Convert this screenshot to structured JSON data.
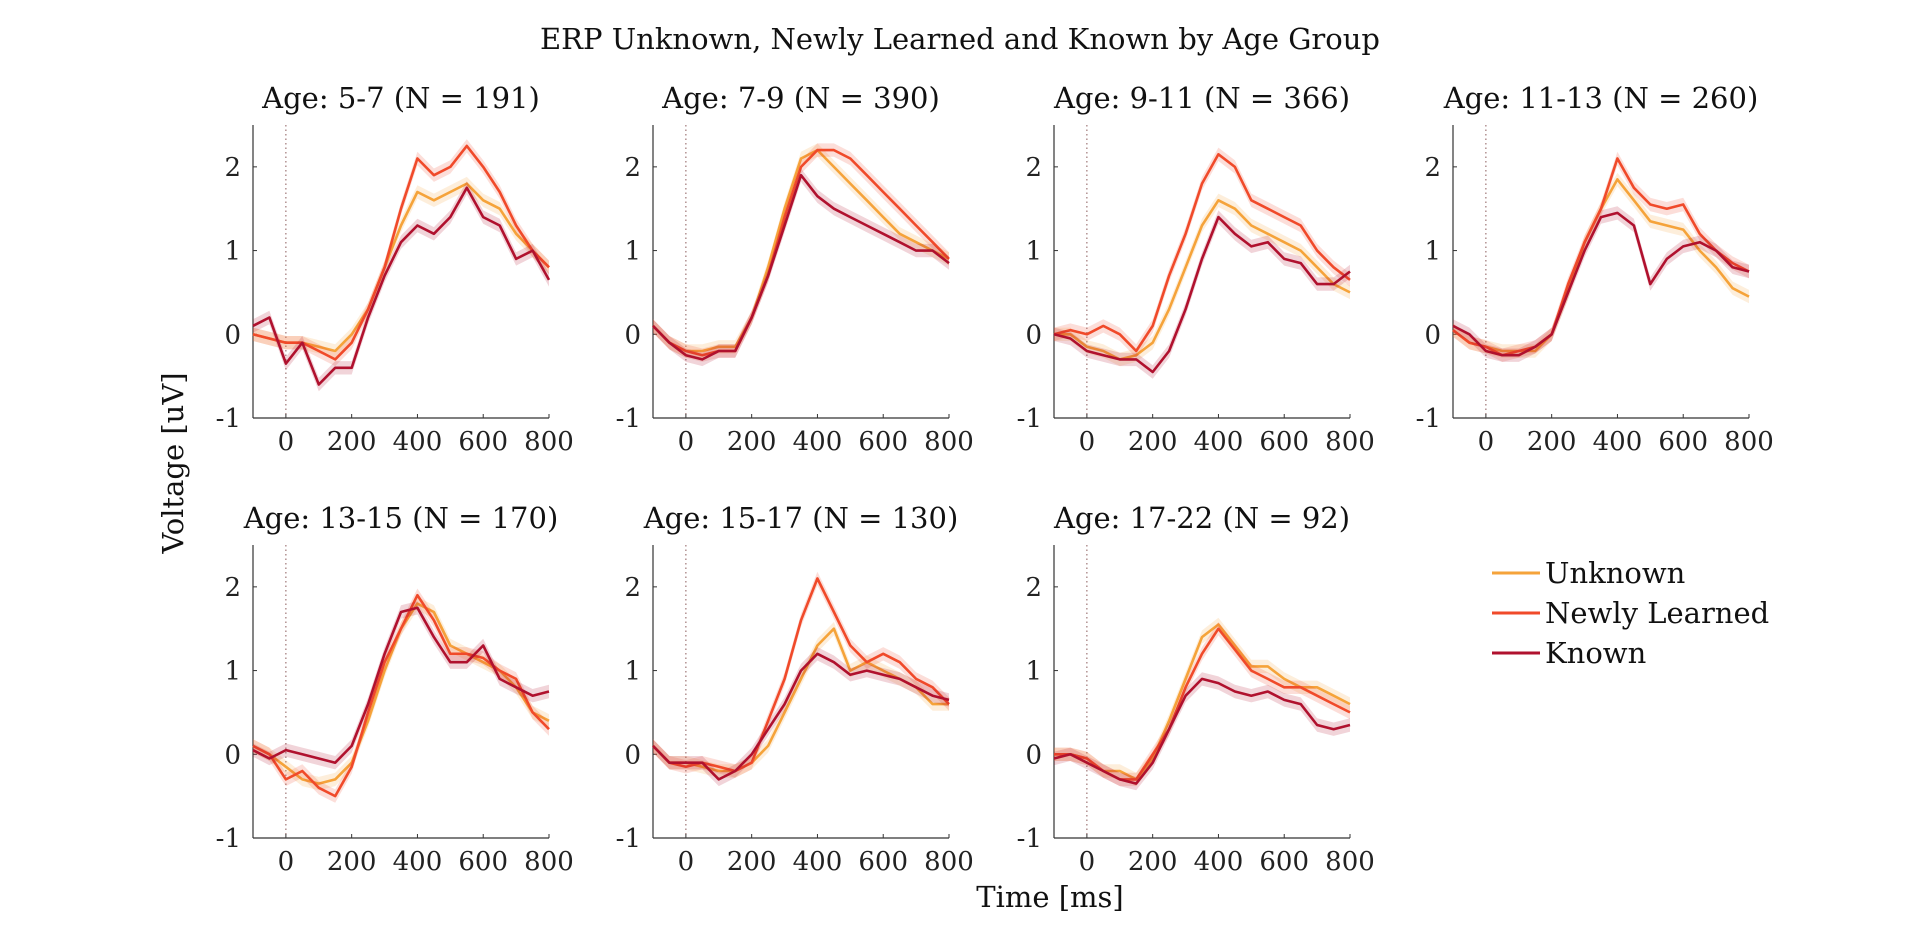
{
  "title": "ERP Unknown, Newly Learned and Known by Age Group",
  "xlabel": "Time [ms]",
  "ylabel": "Voltage [uV]",
  "colors": {
    "Unknown": "#f5a33a",
    "Newly Learned": "#f04a2a",
    "Known": "#b0112e"
  },
  "legend": [
    "Unknown",
    "Newly Learned",
    "Known"
  ],
  "chart_data": {
    "type": "line",
    "title": "ERP Unknown, Newly Learned and Known by Age Group",
    "xlabel": "Time [ms]",
    "ylabel": "Voltage [uV]",
    "xlim": [
      -100,
      800
    ],
    "ylim": [
      -1,
      2.5
    ],
    "xticks": [
      0,
      200,
      400,
      600,
      800
    ],
    "yticks": [
      -1,
      0,
      1,
      2
    ],
    "legend_position": "right",
    "x": [
      -100,
      -50,
      0,
      50,
      100,
      150,
      200,
      250,
      300,
      350,
      400,
      450,
      500,
      550,
      600,
      650,
      700,
      750,
      800
    ],
    "panels": [
      {
        "title": "Age: 5-7 (N = 191)",
        "series": [
          {
            "name": "Unknown",
            "values": [
              0.0,
              -0.05,
              -0.1,
              -0.1,
              -0.15,
              -0.2,
              0.0,
              0.3,
              0.8,
              1.3,
              1.7,
              1.6,
              1.7,
              1.8,
              1.6,
              1.5,
              1.2,
              1.0,
              0.8
            ]
          },
          {
            "name": "Newly Learned",
            "values": [
              0.0,
              -0.05,
              -0.1,
              -0.1,
              -0.2,
              -0.3,
              -0.1,
              0.3,
              0.8,
              1.5,
              2.1,
              1.9,
              2.0,
              2.25,
              2.0,
              1.7,
              1.3,
              1.0,
              0.8
            ]
          },
          {
            "name": "Known",
            "values": [
              0.1,
              0.2,
              -0.35,
              -0.1,
              -0.6,
              -0.4,
              -0.4,
              0.2,
              0.7,
              1.1,
              1.3,
              1.2,
              1.4,
              1.75,
              1.4,
              1.3,
              0.9,
              1.0,
              0.65
            ]
          }
        ]
      },
      {
        "title": "Age: 7-9 (N = 390)",
        "series": [
          {
            "name": "Unknown",
            "values": [
              0.1,
              -0.1,
              -0.2,
              -0.2,
              -0.15,
              -0.15,
              0.2,
              0.8,
              1.5,
              2.1,
              2.2,
              2.0,
              1.8,
              1.6,
              1.4,
              1.2,
              1.1,
              1.0,
              0.9
            ]
          },
          {
            "name": "Newly Learned",
            "values": [
              0.1,
              -0.1,
              -0.2,
              -0.25,
              -0.2,
              -0.2,
              0.2,
              0.7,
              1.4,
              2.0,
              2.2,
              2.2,
              2.1,
              1.9,
              1.7,
              1.5,
              1.3,
              1.1,
              0.9
            ]
          },
          {
            "name": "Known",
            "values": [
              0.1,
              -0.1,
              -0.25,
              -0.3,
              -0.2,
              -0.2,
              0.2,
              0.7,
              1.3,
              1.9,
              1.65,
              1.5,
              1.4,
              1.3,
              1.2,
              1.1,
              1.0,
              1.0,
              0.85
            ]
          }
        ]
      },
      {
        "title": "Age: 9-11 (N = 366)",
        "series": [
          {
            "name": "Unknown",
            "values": [
              0.0,
              0.0,
              -0.15,
              -0.2,
              -0.3,
              -0.25,
              -0.1,
              0.3,
              0.8,
              1.3,
              1.6,
              1.5,
              1.3,
              1.2,
              1.1,
              1.0,
              0.8,
              0.6,
              0.5
            ]
          },
          {
            "name": "Newly Learned",
            "values": [
              0.0,
              0.05,
              0.0,
              0.1,
              0.0,
              -0.2,
              0.1,
              0.7,
              1.2,
              1.8,
              2.15,
              2.0,
              1.6,
              1.5,
              1.4,
              1.3,
              1.0,
              0.8,
              0.65
            ]
          },
          {
            "name": "Known",
            "values": [
              0.0,
              -0.05,
              -0.2,
              -0.25,
              -0.3,
              -0.3,
              -0.45,
              -0.2,
              0.3,
              0.9,
              1.4,
              1.2,
              1.05,
              1.1,
              0.9,
              0.85,
              0.6,
              0.6,
              0.75
            ]
          }
        ]
      },
      {
        "title": "Age: 11-13 (N = 260)",
        "series": [
          {
            "name": "Unknown",
            "values": [
              0.05,
              -0.1,
              -0.15,
              -0.2,
              -0.2,
              -0.2,
              0.0,
              0.5,
              1.1,
              1.5,
              1.85,
              1.6,
              1.35,
              1.3,
              1.25,
              1.0,
              0.8,
              0.55,
              0.45
            ]
          },
          {
            "name": "Newly Learned",
            "values": [
              0.05,
              -0.1,
              -0.15,
              -0.25,
              -0.2,
              -0.15,
              0.0,
              0.6,
              1.1,
              1.5,
              2.1,
              1.75,
              1.55,
              1.5,
              1.55,
              1.2,
              1.0,
              0.85,
              0.75
            ]
          },
          {
            "name": "Known",
            "values": [
              0.1,
              0.0,
              -0.2,
              -0.25,
              -0.25,
              -0.15,
              0.0,
              0.5,
              1.0,
              1.4,
              1.45,
              1.3,
              0.6,
              0.9,
              1.05,
              1.1,
              1.0,
              0.8,
              0.75
            ]
          }
        ]
      },
      {
        "title": "Age: 13-15 (N = 170)",
        "series": [
          {
            "name": "Unknown",
            "values": [
              0.1,
              0.0,
              -0.15,
              -0.3,
              -0.35,
              -0.3,
              -0.1,
              0.4,
              1.0,
              1.5,
              1.8,
              1.7,
              1.3,
              1.2,
              1.1,
              1.0,
              0.8,
              0.5,
              0.4
            ]
          },
          {
            "name": "Newly Learned",
            "values": [
              0.1,
              0.0,
              -0.3,
              -0.2,
              -0.4,
              -0.5,
              -0.15,
              0.5,
              1.1,
              1.5,
              1.9,
              1.6,
              1.2,
              1.2,
              1.15,
              1.0,
              0.9,
              0.5,
              0.3
            ]
          },
          {
            "name": "Known",
            "values": [
              0.05,
              -0.05,
              0.05,
              0.0,
              -0.05,
              -0.1,
              0.1,
              0.6,
              1.2,
              1.7,
              1.75,
              1.4,
              1.1,
              1.1,
              1.3,
              0.9,
              0.8,
              0.7,
              0.75
            ]
          }
        ]
      },
      {
        "title": "Age: 15-17 (N = 130)",
        "series": [
          {
            "name": "Unknown",
            "values": [
              0.1,
              -0.1,
              -0.1,
              -0.15,
              -0.2,
              -0.2,
              -0.1,
              0.1,
              0.5,
              0.9,
              1.3,
              1.5,
              1.0,
              1.1,
              1.0,
              0.9,
              0.8,
              0.6,
              0.6
            ]
          },
          {
            "name": "Newly Learned",
            "values": [
              0.1,
              -0.1,
              -0.15,
              -0.1,
              -0.15,
              -0.2,
              -0.1,
              0.4,
              0.9,
              1.6,
              2.1,
              1.7,
              1.3,
              1.1,
              1.2,
              1.1,
              0.9,
              0.8,
              0.6
            ]
          },
          {
            "name": "Known",
            "values": [
              0.1,
              -0.1,
              -0.1,
              -0.1,
              -0.3,
              -0.2,
              0.0,
              0.3,
              0.6,
              1.0,
              1.2,
              1.1,
              0.95,
              1.0,
              0.95,
              0.9,
              0.8,
              0.7,
              0.65
            ]
          }
        ]
      },
      {
        "title": "Age: 17-22 (N = 92)",
        "series": [
          {
            "name": "Unknown",
            "values": [
              0.0,
              0.0,
              -0.05,
              -0.2,
              -0.2,
              -0.3,
              -0.05,
              0.4,
              0.9,
              1.4,
              1.55,
              1.3,
              1.05,
              1.05,
              0.9,
              0.8,
              0.8,
              0.7,
              0.6
            ]
          },
          {
            "name": "Newly Learned",
            "values": [
              0.0,
              0.0,
              -0.05,
              -0.2,
              -0.3,
              -0.3,
              0.0,
              0.3,
              0.8,
              1.2,
              1.5,
              1.25,
              1.0,
              0.9,
              0.8,
              0.8,
              0.7,
              0.6,
              0.5
            ]
          },
          {
            "name": "Known",
            "values": [
              -0.05,
              0.0,
              -0.1,
              -0.2,
              -0.3,
              -0.35,
              -0.1,
              0.3,
              0.7,
              0.9,
              0.85,
              0.75,
              0.7,
              0.75,
              0.65,
              0.6,
              0.35,
              0.3,
              0.35
            ]
          }
        ]
      }
    ]
  }
}
